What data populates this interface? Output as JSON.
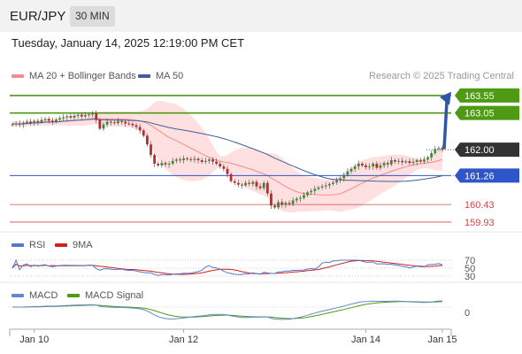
{
  "header": {
    "symbol": "EUR/JPY",
    "interval": "30 MIN",
    "datetime": "Tuesday, January 14, 2025 12:19:00 PM CET"
  },
  "legend": {
    "ma20": "MA 20 + Bollinger Bands",
    "ma50": "MA 50",
    "copyright": "Research © 2025 Trading Central",
    "rsi": "RSI",
    "rsi_ma": "9MA",
    "macd": "MACD",
    "macd_signal": "MACD Signal"
  },
  "colors": {
    "up": "#3a8a3a",
    "down": "#c02828",
    "ma20": "#f28b8b",
    "band": "#ffd6d6",
    "ma50": "#3f5f9a",
    "resistance": "#4e9a12",
    "support": "#2f56c8",
    "target": "#d04848",
    "price": "#333333",
    "rsi": "#5577cc",
    "rsi_ma": "#d02020",
    "macd": "#6688cc",
    "macd_signal": "#4e9a12"
  },
  "chart_data": {
    "type": "candlestick",
    "price_scale": [
      159.7,
      163.75
    ],
    "levels": [
      {
        "name": "resistance-2",
        "value": 163.55,
        "label": "163.55",
        "kind": "resistance"
      },
      {
        "name": "resistance-1",
        "value": 163.05,
        "label": "163.05",
        "kind": "resistance"
      },
      {
        "name": "current-price",
        "value": 162.0,
        "label": "162.00",
        "kind": "price"
      },
      {
        "name": "support-1",
        "value": 161.26,
        "label": "161.26",
        "kind": "support"
      },
      {
        "name": "support-2",
        "value": 160.43,
        "label": "160.43",
        "kind": "target"
      },
      {
        "name": "support-3",
        "value": 159.93,
        "label": "159.93",
        "kind": "target"
      }
    ],
    "x_labels": [
      "Jan 10",
      "Jan 12",
      "Jan 14",
      "Jan 15"
    ],
    "x_label_index": [
      6,
      47,
      97,
      118
    ],
    "closes": [
      162.73,
      162.75,
      162.72,
      162.77,
      162.8,
      162.76,
      162.82,
      162.79,
      162.85,
      162.88,
      162.83,
      162.8,
      162.86,
      162.9,
      162.93,
      162.96,
      162.92,
      162.97,
      163.0,
      162.95,
      162.99,
      163.01,
      163.03,
      162.85,
      162.6,
      162.72,
      162.8,
      162.78,
      162.76,
      162.82,
      162.8,
      162.75,
      162.74,
      162.7,
      162.65,
      162.55,
      162.4,
      162.15,
      161.85,
      161.6,
      161.55,
      161.62,
      161.58,
      161.6,
      161.68,
      161.72,
      161.7,
      161.75,
      161.73,
      161.71,
      161.74,
      161.7,
      161.65,
      161.68,
      161.72,
      161.66,
      161.6,
      161.52,
      161.45,
      161.3,
      161.1,
      161.05,
      161.0,
      160.98,
      161.05,
      161.02,
      161.08,
      160.95,
      160.9,
      161.05,
      160.75,
      160.4,
      160.35,
      160.5,
      160.42,
      160.48,
      160.45,
      160.55,
      160.6,
      160.62,
      160.7,
      160.78,
      160.82,
      160.88,
      160.92,
      160.95,
      160.98,
      161.02,
      161.06,
      161.12,
      161.18,
      161.28,
      161.38,
      161.45,
      161.52,
      161.6,
      161.55,
      161.5,
      161.52,
      161.6,
      161.48,
      161.55,
      161.62,
      161.58,
      161.7,
      161.66,
      161.68,
      161.64,
      161.67,
      161.62,
      161.65,
      161.7,
      161.66,
      161.72,
      161.78,
      161.9,
      162.02,
      162.05,
      162.0
    ],
    "rsi_axis": [
      70,
      50,
      30
    ],
    "macd_axis": [
      0
    ],
    "window": {
      "end_index": 118,
      "resume_index": 76
    }
  }
}
